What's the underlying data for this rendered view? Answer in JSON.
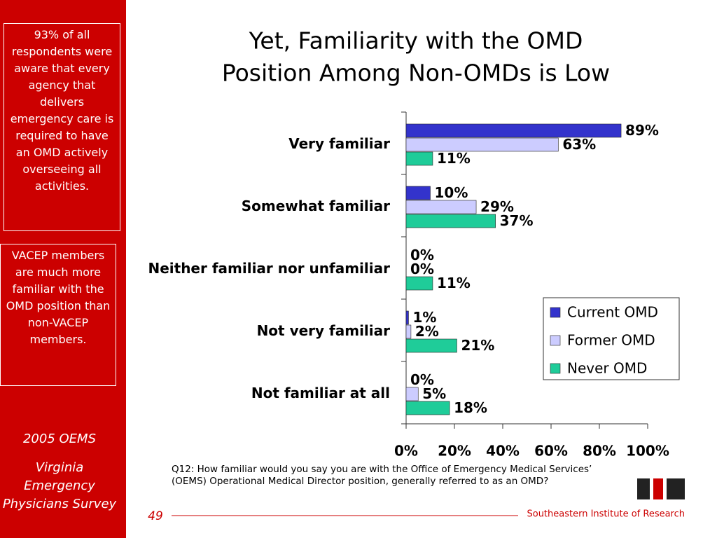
{
  "sidebar": {
    "note1": "93% of all respondents were aware that every agency that delivers emergency care is required to have an OMD actively overseeing all activities.",
    "note2": "VACEP members are much more familiar with the OMD position than non-VACEP members.",
    "survey_year": "2005 OEMS",
    "survey_name": "Virginia Emergency Physicians Survey"
  },
  "chart_data": {
    "type": "hbar",
    "title": [
      "Yet, Familiarity with the OMD",
      "Position Among Non-OMDs is Low"
    ],
    "categories": [
      "Very familiar",
      "Somewhat familiar",
      "Neither familiar nor unfamiliar",
      "Not very familiar",
      "Not familiar at all"
    ],
    "series": [
      {
        "name": "Current OMD",
        "color": "#3333cc",
        "values": [
          89,
          10,
          0,
          1,
          0
        ],
        "value_labels": [
          "89%",
          "10%",
          "0%",
          "1%",
          "0%"
        ]
      },
      {
        "name": "Former OMD",
        "color": "#ccccff",
        "values": [
          63,
          29,
          0,
          2,
          5
        ],
        "value_labels": [
          "63%",
          "29%",
          "0%",
          "2%",
          "5%"
        ]
      },
      {
        "name": "Never OMD",
        "color": "#1fcc99",
        "values": [
          11,
          37,
          11,
          21,
          18
        ],
        "value_labels": [
          "11%",
          "37%",
          "11%",
          "21%",
          "18%"
        ]
      }
    ],
    "xlim": [
      0,
      100
    ],
    "xticks": [
      {
        "value": 0,
        "label": "0%"
      },
      {
        "value": 20,
        "label": "20%"
      },
      {
        "value": 40,
        "label": "40%"
      },
      {
        "value": 60,
        "label": "60%"
      },
      {
        "value": 80,
        "label": "80%"
      },
      {
        "value": 100,
        "label": "100%"
      }
    ],
    "legend": "right",
    "note": "Q12: How familiar would you say you are with the Office of Emergency Medical Services’ (OEMS) Operational Medical Director position, generally referred to as an OMD?"
  },
  "footer": {
    "page": "49",
    "organization": "Southeastern Institute of Research"
  }
}
